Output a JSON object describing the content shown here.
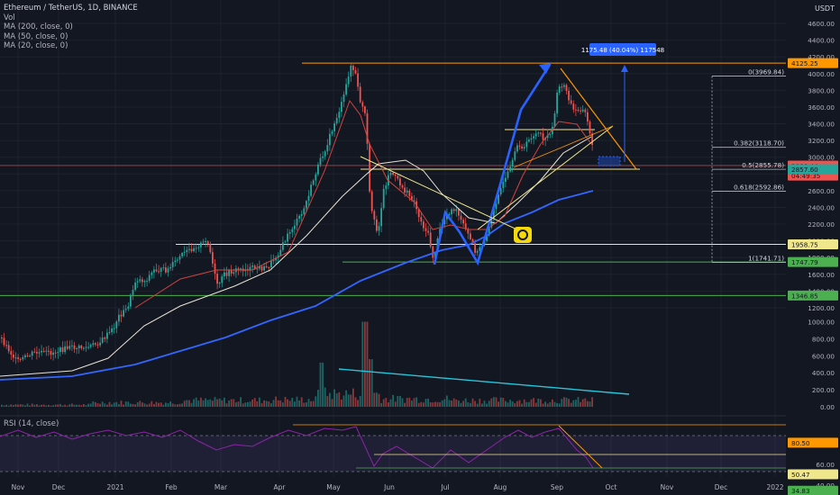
{
  "legend": {
    "title": "Ethereum / TetherUS, 1D, BINANCE",
    "vol": "Vol",
    "ma200": "MA (200, close, 0)",
    "ma50": "MA (50, close, 0)",
    "ma_extra": "MA (20, close, 0)"
  },
  "rsi_label": "RSI (14, close)",
  "currency": "USDT",
  "colors": {
    "background": "#131722",
    "up": "#26a69a",
    "down": "#ef5350",
    "ma200": "#3366ff",
    "ma50": "#e8e3d3",
    "ma20": "#d0443e",
    "level_line": "#f0e68c",
    "green_line": "#4caf50",
    "orange_line": "#ff9800",
    "rsi": "#8e24aa",
    "pattern": "#2962ff",
    "volume_trend": "#26c6da"
  },
  "chart_data": {
    "type": "candlestick",
    "x_tick_labels": [
      "Nov",
      "Dec",
      "2021",
      "Feb",
      "Mar",
      "Apr",
      "May",
      "Jun",
      "Jul",
      "Aug",
      "Sep",
      "Oct",
      "Nov",
      "Dec",
      "2022"
    ],
    "price_axis": {
      "range": [
        1000,
        4800
      ],
      "tick_labels": [
        "4600.00",
        "4400.00",
        "4200.00",
        "4000.00",
        "3800.00",
        "3600.00",
        "3400.00",
        "3200.00",
        "3000.00",
        "2800.00",
        "2600.00",
        "2400.00",
        "2200.00",
        "2000.00",
        "1800.00",
        "1600.00",
        "1400.00",
        "1200.00"
      ],
      "tick_values": [
        4600,
        4400,
        4200,
        4000,
        3800,
        3600,
        3400,
        3200,
        3000,
        2800,
        2600,
        2400,
        2200,
        2000,
        1800,
        1600,
        1400,
        1200
      ]
    },
    "volume_axis": {
      "tick_labels": [
        "1000.00",
        "800.00",
        "600.00",
        "400.00",
        "200.00",
        "0.00"
      ],
      "tick_values": [
        1000,
        800,
        600,
        400,
        200,
        0
      ]
    },
    "rsi_axis": {
      "tick_labels": [
        "60.00",
        "40.00"
      ],
      "tick_values": [
        60,
        40
      ]
    },
    "price_badges": [
      {
        "label": "4125.25",
        "value": 4125.25,
        "color": "#ff9800"
      },
      {
        "label": "2900.44",
        "value": 2900.44,
        "color": "#ef5350"
      },
      {
        "label": "04:49:35",
        "value": 2780,
        "color": "#ef5350"
      },
      {
        "label": "2857.60",
        "value": 2857.6,
        "color": "#26a69a"
      },
      {
        "label": "1958.75",
        "value": 1958.75,
        "color": "#f0e68c"
      },
      {
        "label": "1747.79",
        "value": 1747.79,
        "color": "#4caf50"
      },
      {
        "label": "1346.85",
        "value": 1346.85,
        "color": "#4caf50"
      }
    ],
    "rsi_badges": [
      {
        "label": "80.50",
        "value": 80.5,
        "color": "#ff9800"
      },
      {
        "label": "50.47",
        "value": 50.47,
        "color": "#f0e68c"
      },
      {
        "label": "34.83",
        "value": 34.83,
        "color": "#4caf50"
      }
    ],
    "fib_levels": [
      {
        "label": "0(3969.84)",
        "value": 3969.84
      },
      {
        "label": "0.382(3118.70)",
        "value": 3118.7
      },
      {
        "label": "0.5(2855.78)",
        "value": 2855.78
      },
      {
        "label": "0.618(2592.86)",
        "value": 2592.86
      },
      {
        "label": "1(1741.71)",
        "value": 1741.71
      }
    ],
    "measure_label": "1175.48 (40.04%) 117548",
    "price_path": [
      [
        0,
        375
      ],
      [
        18,
        402
      ],
      [
        36,
        392
      ],
      [
        56,
        392
      ],
      [
        76,
        386
      ],
      [
        96,
        386
      ],
      [
        110,
        380
      ],
      [
        125,
        365
      ],
      [
        130,
        352
      ],
      [
        140,
        343
      ],
      [
        150,
        310
      ],
      [
        160,
        312
      ],
      [
        170,
        300
      ],
      [
        185,
        300
      ],
      [
        200,
        284
      ],
      [
        215,
        274
      ],
      [
        230,
        268
      ],
      [
        240,
        318
      ],
      [
        248,
        305
      ],
      [
        260,
        300
      ],
      [
        278,
        298
      ],
      [
        295,
        298
      ],
      [
        310,
        278
      ],
      [
        320,
        258
      ],
      [
        335,
        236
      ],
      [
        350,
        190
      ],
      [
        362,
        160
      ],
      [
        372,
        132
      ],
      [
        380,
        110
      ],
      [
        388,
        72
      ],
      [
        394,
        84
      ],
      [
        398,
        110
      ],
      [
        405,
        130
      ],
      [
        410,
        230
      ],
      [
        418,
        260
      ],
      [
        425,
        210
      ],
      [
        432,
        190
      ],
      [
        440,
        200
      ],
      [
        448,
        212
      ],
      [
        458,
        222
      ],
      [
        466,
        246
      ],
      [
        474,
        260
      ],
      [
        480,
        288
      ],
      [
        488,
        252
      ],
      [
        496,
        236
      ],
      [
        504,
        232
      ],
      [
        512,
        248
      ],
      [
        520,
        264
      ],
      [
        528,
        282
      ],
      [
        536,
        268
      ],
      [
        544,
        246
      ],
      [
        552,
        214
      ],
      [
        560,
        200
      ],
      [
        568,
        180
      ],
      [
        574,
        158
      ],
      [
        580,
        166
      ],
      [
        588,
        152
      ],
      [
        596,
        148
      ],
      [
        604,
        156
      ],
      [
        612,
        142
      ],
      [
        618,
        100
      ],
      [
        624,
        92
      ],
      [
        630,
        110
      ],
      [
        636,
        124
      ],
      [
        642,
        120
      ],
      [
        648,
        124
      ],
      [
        654,
        148
      ],
      [
        658,
        176
      ]
    ],
    "ma20_path": [
      [
        150,
        342
      ],
      [
        200,
        310
      ],
      [
        240,
        300
      ],
      [
        280,
        300
      ],
      [
        320,
        280
      ],
      [
        360,
        190
      ],
      [
        388,
        112
      ],
      [
        400,
        128
      ],
      [
        410,
        160
      ],
      [
        430,
        200
      ],
      [
        460,
        225
      ],
      [
        480,
        255
      ],
      [
        500,
        250
      ],
      [
        520,
        255
      ],
      [
        540,
        255
      ],
      [
        560,
        240
      ],
      [
        580,
        195
      ],
      [
        600,
        160
      ],
      [
        620,
        135
      ],
      [
        640,
        138
      ],
      [
        656,
        160
      ]
    ],
    "ma50_path": [
      [
        0,
        418
      ],
      [
        80,
        412
      ],
      [
        120,
        398
      ],
      [
        160,
        362
      ],
      [
        200,
        340
      ],
      [
        260,
        318
      ],
      [
        300,
        300
      ],
      [
        340,
        262
      ],
      [
        380,
        218
      ],
      [
        405,
        195
      ],
      [
        420,
        182
      ],
      [
        450,
        178
      ],
      [
        470,
        190
      ],
      [
        490,
        215
      ],
      [
        520,
        242
      ],
      [
        550,
        248
      ],
      [
        575,
        225
      ],
      [
        600,
        200
      ],
      [
        625,
        170
      ],
      [
        656,
        152
      ]
    ],
    "ma200_path": [
      [
        0,
        422
      ],
      [
        80,
        418
      ],
      [
        150,
        405
      ],
      [
        200,
        390
      ],
      [
        250,
        375
      ],
      [
        300,
        356
      ],
      [
        350,
        340
      ],
      [
        400,
        312
      ],
      [
        450,
        292
      ],
      [
        490,
        278
      ],
      [
        520,
        272
      ],
      [
        540,
        262
      ],
      [
        560,
        248
      ],
      [
        590,
        236
      ],
      [
        620,
        222
      ],
      [
        658,
        212
      ]
    ],
    "rsi_path": [
      [
        0,
        485
      ],
      [
        20,
        478
      ],
      [
        40,
        486
      ],
      [
        60,
        480
      ],
      [
        80,
        488
      ],
      [
        100,
        482
      ],
      [
        120,
        478
      ],
      [
        140,
        484
      ],
      [
        160,
        480
      ],
      [
        180,
        486
      ],
      [
        200,
        478
      ],
      [
        220,
        490
      ],
      [
        240,
        500
      ],
      [
        260,
        494
      ],
      [
        280,
        496
      ],
      [
        300,
        486
      ],
      [
        320,
        478
      ],
      [
        340,
        484
      ],
      [
        360,
        476
      ],
      [
        380,
        478
      ],
      [
        395,
        474
      ],
      [
        405,
        496
      ],
      [
        415,
        518
      ],
      [
        425,
        504
      ],
      [
        440,
        496
      ],
      [
        460,
        508
      ],
      [
        480,
        520
      ],
      [
        500,
        500
      ],
      [
        520,
        514
      ],
      [
        540,
        500
      ],
      [
        560,
        486
      ],
      [
        575,
        478
      ],
      [
        590,
        486
      ],
      [
        605,
        480
      ],
      [
        620,
        476
      ],
      [
        630,
        488
      ],
      [
        640,
        500
      ],
      [
        650,
        508
      ],
      [
        658,
        520
      ]
    ]
  }
}
